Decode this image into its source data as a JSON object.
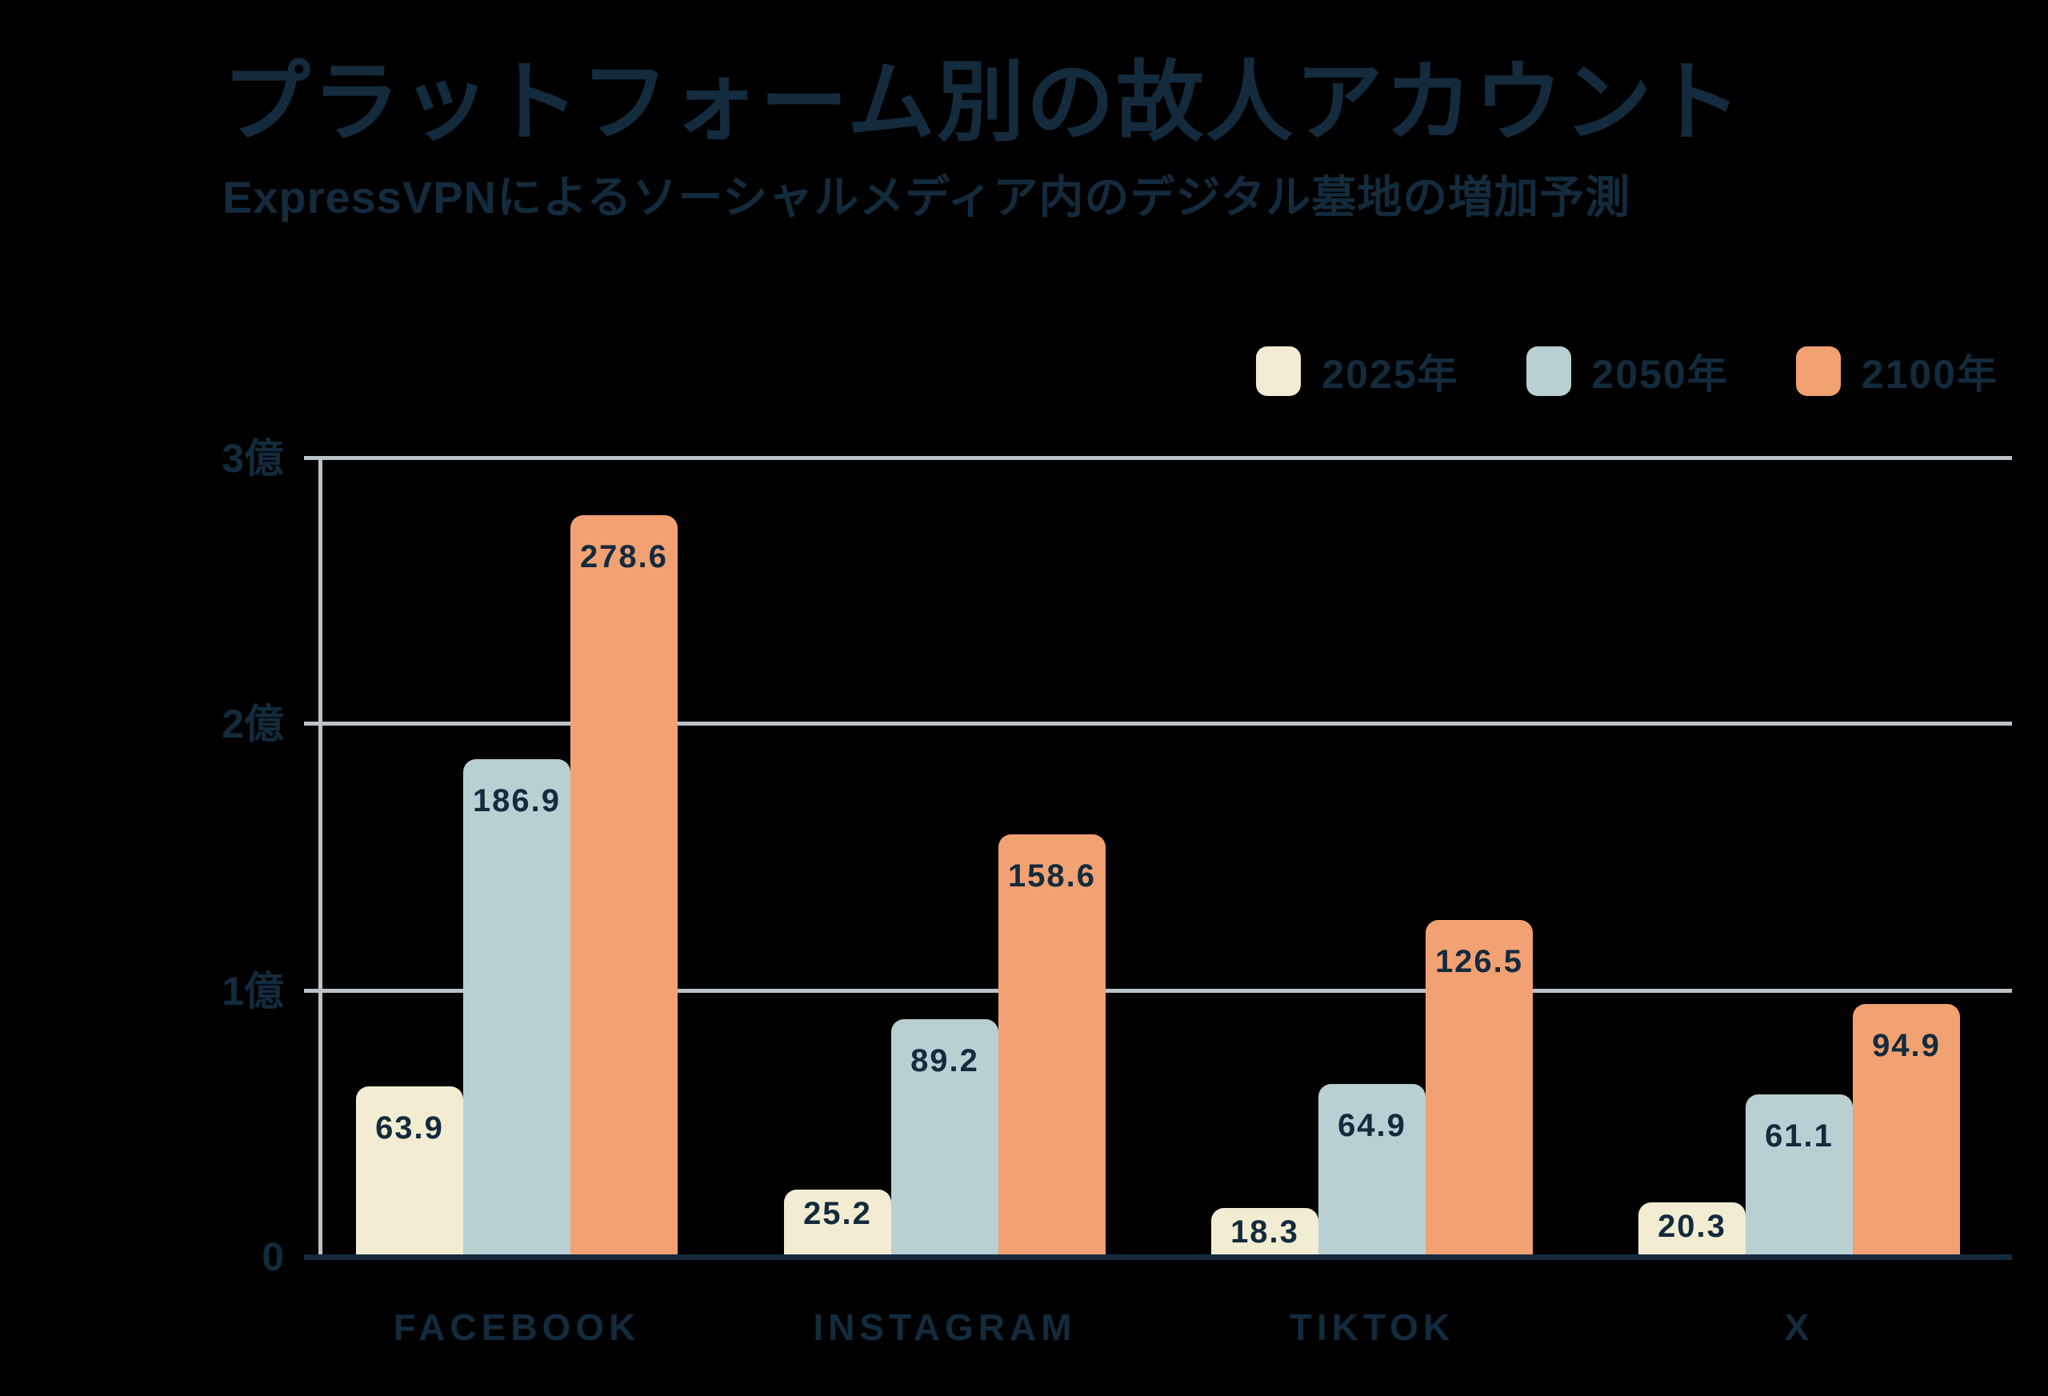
{
  "header": {
    "title": "プラットフォーム別の故人アカウント",
    "subtitle": "ExpressVPNによるソーシャルメディア内のデジタル墓地の増加予測"
  },
  "chart_data": {
    "type": "bar",
    "title": "プラットフォーム別の故人アカウント",
    "subtitle": "ExpressVPNによるソーシャルメディア内のデジタル墓地の増加予測",
    "categories": [
      "FACEBOOK",
      "INSTAGRAM",
      "TIKTOK",
      "X"
    ],
    "series": [
      {
        "name": "2025年",
        "color": "#F2ECD2",
        "values": [
          63.9,
          25.2,
          18.3,
          20.3
        ]
      },
      {
        "name": "2050年",
        "color": "#B9D0D2",
        "values": [
          186.9,
          89.2,
          64.9,
          61.1
        ]
      },
      {
        "name": "2100年",
        "color": "#F2A173",
        "values": [
          278.6,
          158.6,
          126.5,
          94.9
        ]
      }
    ],
    "ytick_labels": [
      "0",
      "1億",
      "2億",
      "3億"
    ],
    "ylim": [
      0,
      300
    ],
    "xlabel": "",
    "ylabel": "",
    "grid": true,
    "value_labels": true,
    "legend_position": "top-right"
  },
  "colors": {
    "background": "#000000",
    "text": "#132B3D",
    "gridline": "#BBC2C8",
    "axis_baseline": "#132B3D",
    "series_2025": "#F2ECD2",
    "series_2050": "#B9D0D2",
    "series_2100": "#F2A173"
  }
}
